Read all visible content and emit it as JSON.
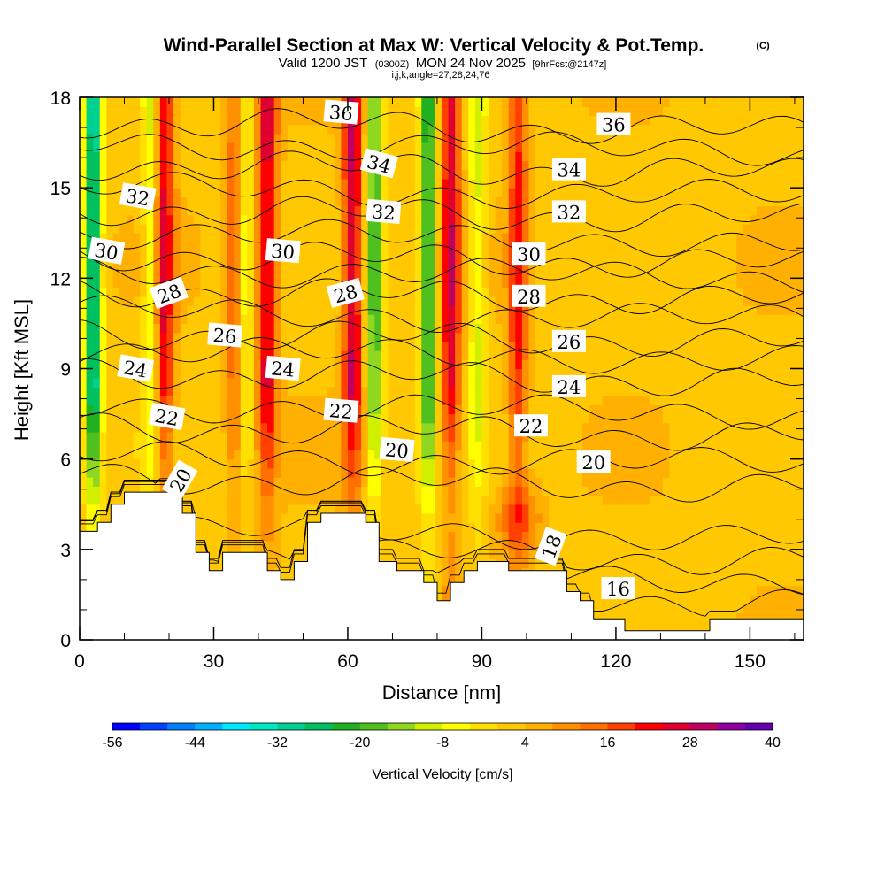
{
  "title": {
    "main": "Wind-Parallel Section at Max W: Vertical Velocity & Pot.Temp.",
    "copyright": "(C)",
    "valid_prefix": "Valid 1200 JST",
    "valid_utc": "(0300Z)",
    "valid_date": "MON 24 Nov 2025",
    "forecast": "[9hrFcst@2147z]",
    "indices": "i,j,k,angle=27,28,24,76"
  },
  "chart_data": {
    "type": "heatmap",
    "xlabel": "Distance [nm]",
    "ylabel": "Height [Kft MSL]",
    "xlim": [
      0,
      162
    ],
    "ylim": [
      0,
      18
    ],
    "x_ticks": [
      0,
      30,
      60,
      90,
      120,
      150
    ],
    "y_ticks": [
      0,
      3,
      6,
      9,
      12,
      15,
      18
    ],
    "colorbar": {
      "label": "Vertical Velocity [cm/s]",
      "range": [
        -56,
        40
      ],
      "step": 4,
      "tick_values": [
        -56,
        -44,
        -32,
        -20,
        -8,
        4,
        16,
        28,
        40
      ],
      "colors": [
        "#0000ff",
        "#0040ff",
        "#0080ff",
        "#00b0ff",
        "#00e8ff",
        "#00e8c0",
        "#00d090",
        "#00c060",
        "#20b020",
        "#50c020",
        "#90d820",
        "#d0f000",
        "#ffff00",
        "#ffe000",
        "#ffc800",
        "#ffb000",
        "#ff9000",
        "#ff7000",
        "#ff4000",
        "#ff0000",
        "#e00030",
        "#c00060",
        "#9000a0",
        "#6000b0"
      ]
    },
    "terrain": [
      [
        0,
        3.6
      ],
      [
        4,
        3.6
      ],
      [
        4,
        3.9
      ],
      [
        7,
        3.9
      ],
      [
        7,
        4.5
      ],
      [
        10,
        4.5
      ],
      [
        10,
        4.9
      ],
      [
        23,
        4.9
      ],
      [
        23,
        4.2
      ],
      [
        26,
        4.2
      ],
      [
        26,
        2.9
      ],
      [
        29,
        2.9
      ],
      [
        29,
        2.3
      ],
      [
        32,
        2.3
      ],
      [
        32,
        2.9
      ],
      [
        42,
        2.9
      ],
      [
        42,
        2.3
      ],
      [
        45,
        2.3
      ],
      [
        45,
        2.0
      ],
      [
        48,
        2.0
      ],
      [
        48,
        2.6
      ],
      [
        51,
        2.6
      ],
      [
        51,
        3.9
      ],
      [
        54,
        3.9
      ],
      [
        54,
        4.2
      ],
      [
        64,
        4.2
      ],
      [
        64,
        3.9
      ],
      [
        67,
        3.9
      ],
      [
        67,
        2.6
      ],
      [
        71,
        2.6
      ],
      [
        71,
        2.3
      ],
      [
        77,
        2.3
      ],
      [
        77,
        1.9
      ],
      [
        80,
        1.9
      ],
      [
        80,
        1.3
      ],
      [
        83,
        1.3
      ],
      [
        83,
        1.9
      ],
      [
        86,
        1.9
      ],
      [
        86,
        2.3
      ],
      [
        89,
        2.3
      ],
      [
        89,
        2.6
      ],
      [
        96,
        2.6
      ],
      [
        96,
        2.3
      ],
      [
        109,
        2.3
      ],
      [
        109,
        1.6
      ],
      [
        112,
        1.6
      ],
      [
        112,
        1.3
      ],
      [
        115,
        1.3
      ],
      [
        115,
        0.7
      ],
      [
        122,
        0.7
      ],
      [
        122,
        0.3
      ],
      [
        141,
        0.3
      ],
      [
        141,
        0.7
      ],
      [
        162,
        0.7
      ]
    ],
    "updraft_bands": [
      {
        "x": 19,
        "amp": 22
      },
      {
        "x": 35,
        "amp": 14
      },
      {
        "x": 42,
        "amp": 24
      },
      {
        "x": 61,
        "amp": 26
      },
      {
        "x": 83,
        "amp": 24
      },
      {
        "x": 98,
        "amp": 18
      }
    ],
    "downdraft_bands": [
      {
        "x": 3,
        "amp": -36
      },
      {
        "x": 16,
        "amp": -12
      },
      {
        "x": 37,
        "amp": -14
      },
      {
        "x": 66,
        "amp": -22
      },
      {
        "x": 78,
        "amp": -26
      },
      {
        "x": 89,
        "amp": -12
      }
    ],
    "isentropes": [
      {
        "value": 16,
        "base": 1.6,
        "label": "16",
        "label_x": 120.5,
        "label_y": 1.7
      },
      {
        "value": 18,
        "base": 3.0,
        "label": "18",
        "label_x": 105.5,
        "label_y": 3.1
      },
      {
        "value": 20,
        "base": 5.4,
        "label": "20",
        "label_x": 115.0,
        "label_y": 5.9,
        "label2": "20",
        "label2_x": 71.0,
        "label2_y": 6.3,
        "label3": "20",
        "label3_x": 22.5,
        "label3_y": 5.3
      },
      {
        "value": 22,
        "base": 7.1,
        "label": "22",
        "label_x": 101.0,
        "label_y": 7.1,
        "label2": "22",
        "label2_x": 58.5,
        "label2_y": 7.6,
        "label3": "22",
        "label3_x": 19.5,
        "label3_y": 7.4
      },
      {
        "value": 24,
        "base": 8.9,
        "label": "24",
        "label_x": 109.5,
        "label_y": 8.4,
        "label2": "24",
        "label2_x": 45.5,
        "label2_y": 9.0,
        "label3": "24",
        "label3_x": 12.5,
        "label3_y": 9.0
      },
      {
        "value": 26,
        "base": 10.2,
        "label": "26",
        "label_x": 109.5,
        "label_y": 9.9,
        "label2": "26",
        "label2_x": 32.5,
        "label2_y": 10.1
      },
      {
        "value": 28,
        "base": 11.6,
        "label": "28",
        "label_x": 100.5,
        "label_y": 11.4,
        "label2": "28",
        "label2_x": 59.5,
        "label2_y": 11.5,
        "label3": "28",
        "label3_x": 20.0,
        "label3_y": 11.5
      },
      {
        "value": 30,
        "base": 12.8,
        "label": "30",
        "label_x": 100.5,
        "label_y": 12.8,
        "label2": "30",
        "label2_x": 45.5,
        "label2_y": 12.9,
        "label3": "30",
        "label3_x": 6.0,
        "label3_y": 12.9
      },
      {
        "value": 32,
        "base": 14.3,
        "label": "32",
        "label_x": 109.5,
        "label_y": 14.2,
        "label2": "32",
        "label2_x": 68.0,
        "label2_y": 14.2,
        "label3": "32",
        "label3_x": 13.0,
        "label3_y": 14.7
      },
      {
        "value": 34,
        "base": 15.8,
        "label": "34",
        "label_x": 109.5,
        "label_y": 15.6,
        "label2": "34",
        "label2_x": 67.0,
        "label2_y": 15.8
      },
      {
        "value": 36,
        "base": 17.2,
        "label": "36",
        "label_x": 119.5,
        "label_y": 17.1,
        "label2": "36",
        "label2_x": 58.5,
        "label2_y": 17.5
      }
    ]
  }
}
